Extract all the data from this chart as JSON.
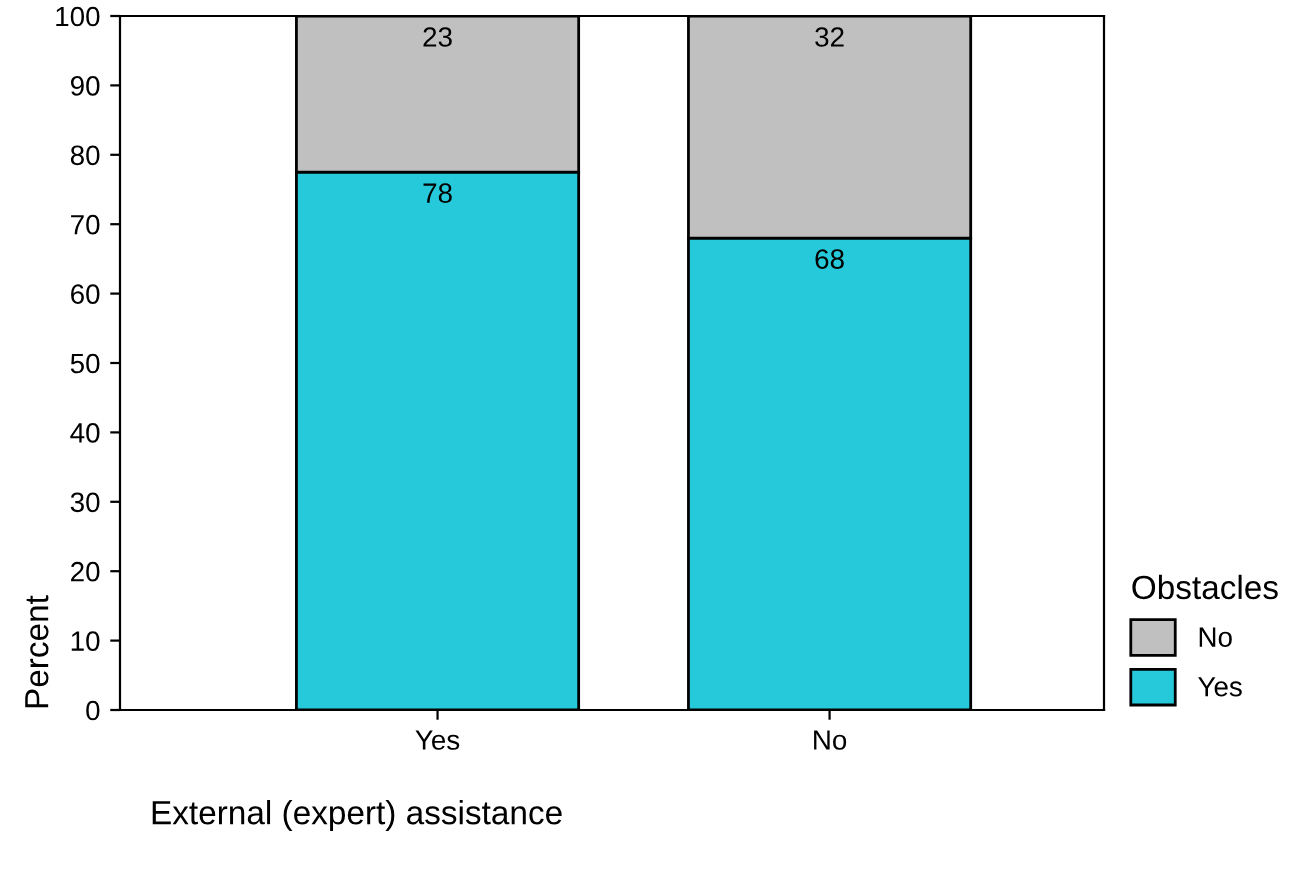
{
  "chart_data": {
    "type": "bar",
    "stacked": true,
    "categories": [
      "Yes",
      "No"
    ],
    "series": [
      {
        "name": "Yes",
        "color": "#26c9d9",
        "values": [
          77.5,
          68
        ],
        "value_labels": [
          "78",
          "68"
        ]
      },
      {
        "name": "No",
        "color": "#c0c0c0",
        "values": [
          22.5,
          32
        ],
        "value_labels": [
          "23",
          "32"
        ]
      }
    ],
    "xlabel": "External (expert) assistance",
    "ylabel": "Percent",
    "legend_title": "Obstacles",
    "legend": "right",
    "ylim": [
      0,
      100
    ],
    "yticks": [
      0,
      10,
      20,
      30,
      40,
      50,
      60,
      70,
      80,
      90,
      100
    ],
    "grid": false
  }
}
